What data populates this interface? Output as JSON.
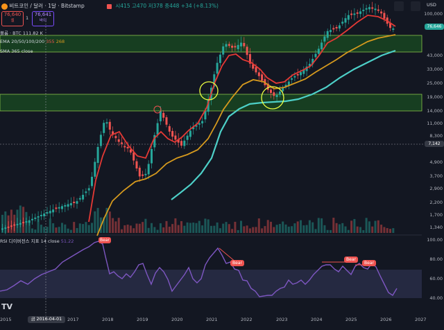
{
  "header": {
    "title": "비트코인 / 달러 · 1달 · Bitstamp",
    "ohlc": "시415  고470  저378  종448  +34 (+8.13%)",
    "sell_price": "76,640",
    "sell_label": "셀",
    "buy_price": "76,641",
    "buy_label": "바이",
    "spread": "1",
    "volume_label": "볼륨 · BTC",
    "volume_value": "111.82 K",
    "ema_label": "EMA 20/50/100/200",
    "ema_values": [
      "355",
      "268"
    ],
    "sma_label": "SMA 365 close",
    "currency": "USD"
  },
  "price_axis": {
    "labels": [
      "100,000",
      "76,646",
      "43,000",
      "33,000",
      "25,000",
      "19,000",
      "14,000",
      "11,000",
      "8,300",
      "7,142",
      "4,900",
      "3,700",
      "2,900",
      "2,200",
      "1,700",
      "1,340"
    ],
    "current": "76,646",
    "crosshair": "7,142"
  },
  "rsi": {
    "label": "RSI 디이버전스 지표 14 close",
    "value": "51.22",
    "axis": [
      "100.00",
      "80.00",
      "60.00",
      "40.00"
    ],
    "bear_labels": [
      "Bear",
      "Bear",
      "Bear",
      "Bear"
    ]
  },
  "time_axis": {
    "labels": [
      "2015",
      "2017",
      "2018",
      "2019",
      "2020",
      "2021",
      "2022",
      "2023",
      "2024",
      "2025",
      "2026",
      "2027"
    ],
    "cursor_date": "금 2016-04-01"
  },
  "logo": "TV",
  "colors": {
    "bg": "#131722",
    "up": "#26a69a",
    "down": "#ef5350",
    "zone": "#1b5e20",
    "rsi": "#7e57c2",
    "ema_red": "#e53935",
    "ema_orange": "#d69a1e",
    "sma": "#4dd0c8"
  }
}
